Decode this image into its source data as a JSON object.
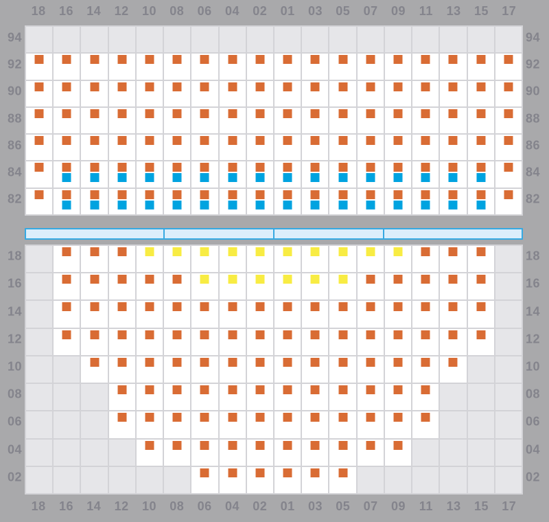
{
  "columns": [
    "18",
    "16",
    "14",
    "12",
    "10",
    "08",
    "06",
    "04",
    "02",
    "01",
    "03",
    "05",
    "07",
    "09",
    "11",
    "13",
    "15",
    "17"
  ],
  "colors": {
    "page_background": "#a9a9ab",
    "label_text": "#84848c",
    "cell_white": "#ffffff",
    "cell_gray": "#e6e6e9",
    "grid_line": "#d3d3d7",
    "marker_orange": "#d96c34",
    "marker_blue": "#00a3e0",
    "marker_yellow": "#f8ec43",
    "bar_fill": "#dceefb",
    "bar_border": "#36a9e2"
  },
  "cell_legend": {
    "g": "gray empty cell",
    "w": "white empty cell",
    "o": "orange square marker",
    "y": "yellow square marker",
    "b": "orange square marker with blue square marker below"
  },
  "chart_data": [
    {
      "type": "heatmap",
      "position": "upper",
      "title": "",
      "xlabel": "",
      "ylabel": "",
      "columns": [
        "18",
        "16",
        "14",
        "12",
        "10",
        "08",
        "06",
        "04",
        "02",
        "01",
        "03",
        "05",
        "07",
        "09",
        "11",
        "13",
        "15",
        "17"
      ],
      "row_labels": [
        "94",
        "92",
        "90",
        "88",
        "86",
        "84",
        "82"
      ],
      "row_labels_sides": "both",
      "column_labels_position": "top",
      "rows": [
        "gggggggggggggggggg",
        "oooooooooooooooooo",
        "oooooooooooooooooo",
        "oooooooooooooooooo",
        "oooooooooooooooooo",
        "obbbbbbbbbbbbbbbbo",
        "obbbbbbbbbbbbbbbbo"
      ]
    },
    {
      "type": "heatmap",
      "position": "lower",
      "title": "",
      "xlabel": "",
      "ylabel": "",
      "columns": [
        "18",
        "16",
        "14",
        "12",
        "10",
        "08",
        "06",
        "04",
        "02",
        "01",
        "03",
        "05",
        "07",
        "09",
        "11",
        "13",
        "15",
        "17"
      ],
      "row_labels": [
        "18",
        "16",
        "14",
        "12",
        "10",
        "08",
        "06",
        "04",
        "02"
      ],
      "row_labels_sides": "both",
      "column_labels_position": "bottom",
      "rows": [
        "goooyyyyyyyyyyooog",
        "goooooyyyyyyooooog",
        "goooooooooooooooog",
        "goooooooooooooooog",
        "ggoooooooooooooogg",
        "gggooooooooooooggg",
        "gggooooooooooooggg",
        "ggggoooooooooogggg",
        "ggggggoooooogggggg"
      ]
    }
  ],
  "divider_bar": {
    "segments_in_columns": [
      5,
      4,
      4,
      5
    ],
    "segment_boundaries_after_columns": [
      5,
      9,
      13
    ]
  }
}
